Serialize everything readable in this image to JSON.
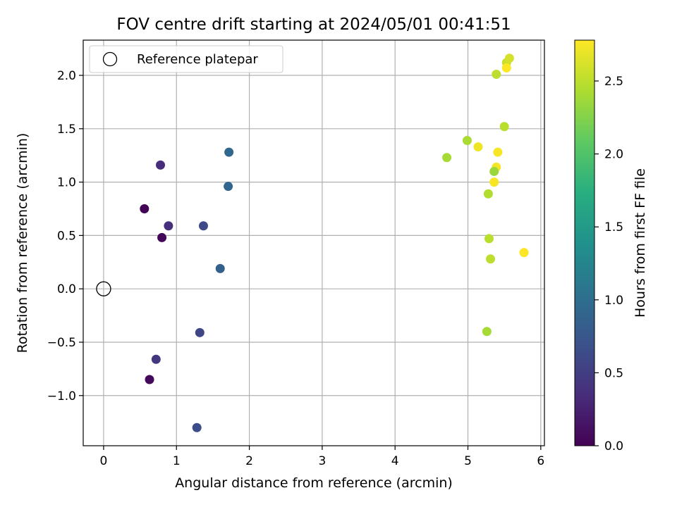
{
  "chart_data": {
    "type": "scatter",
    "title": "FOV centre drift starting at 2024/05/01 00:41:51",
    "xlabel": "Angular distance from reference (arcmin)",
    "ylabel": "Rotation from reference (arcmin)",
    "xlim": [
      -0.28,
      6.05
    ],
    "ylim": [
      -1.47,
      2.33
    ],
    "xticks": [
      {
        "value": 0,
        "label": "0"
      },
      {
        "value": 1,
        "label": "1"
      },
      {
        "value": 2,
        "label": "2"
      },
      {
        "value": 3,
        "label": "3"
      },
      {
        "value": 4,
        "label": "4"
      },
      {
        "value": 5,
        "label": "5"
      },
      {
        "value": 6,
        "label": "6"
      }
    ],
    "yticks": [
      {
        "value": -1.0,
        "label": "−1.0"
      },
      {
        "value": -0.5,
        "label": "−0.5"
      },
      {
        "value": 0.0,
        "label": "0.0"
      },
      {
        "value": 0.5,
        "label": "0.5"
      },
      {
        "value": 1.0,
        "label": "1.0"
      },
      {
        "value": 1.5,
        "label": "1.5"
      },
      {
        "value": 2.0,
        "label": "2.0"
      }
    ],
    "grid": true,
    "legend": {
      "placement": "top-left",
      "entries": [
        "Reference platepar"
      ]
    },
    "reference_point": {
      "x": 0.0,
      "y": 0.0,
      "label": "Reference platepar"
    },
    "colorbar": {
      "label": "Hours from first FF file",
      "colormap": "viridis",
      "range": [
        0.0,
        2.78
      ],
      "ticks": [
        {
          "value": 0.0,
          "label": "0.0"
        },
        {
          "value": 0.5,
          "label": "0.5"
        },
        {
          "value": 1.0,
          "label": "1.0"
        },
        {
          "value": 1.5,
          "label": "1.5"
        },
        {
          "value": 2.0,
          "label": "2.0"
        },
        {
          "value": 2.5,
          "label": "2.5"
        }
      ]
    },
    "points": [
      {
        "x": 0.56,
        "y": 0.75,
        "hours": 0.02
      },
      {
        "x": 0.8,
        "y": 0.48,
        "hours": 0.04
      },
      {
        "x": 0.63,
        "y": -0.85,
        "hours": 0.06
      },
      {
        "x": 0.78,
        "y": 1.16,
        "hours": 0.35
      },
      {
        "x": 0.89,
        "y": 0.59,
        "hours": 0.38
      },
      {
        "x": 0.72,
        "y": -0.66,
        "hours": 0.45
      },
      {
        "x": 1.32,
        "y": -0.41,
        "hours": 0.58
      },
      {
        "x": 1.37,
        "y": 0.59,
        "hours": 0.62
      },
      {
        "x": 1.28,
        "y": -1.3,
        "hours": 0.65
      },
      {
        "x": 1.6,
        "y": 0.19,
        "hours": 0.85
      },
      {
        "x": 1.71,
        "y": 0.96,
        "hours": 0.9
      },
      {
        "x": 1.72,
        "y": 1.28,
        "hours": 0.93
      },
      {
        "x": 4.71,
        "y": 1.23,
        "hours": 2.4
      },
      {
        "x": 4.99,
        "y": 1.39,
        "hours": 2.42
      },
      {
        "x": 5.14,
        "y": 1.33,
        "hours": 2.72
      },
      {
        "x": 5.41,
        "y": 1.28,
        "hours": 2.75
      },
      {
        "x": 5.39,
        "y": 1.14,
        "hours": 2.74
      },
      {
        "x": 5.36,
        "y": 1.1,
        "hours": 2.35
      },
      {
        "x": 5.36,
        "y": 1.0,
        "hours": 2.76
      },
      {
        "x": 5.28,
        "y": 0.89,
        "hours": 2.45
      },
      {
        "x": 5.29,
        "y": 0.47,
        "hours": 2.48
      },
      {
        "x": 5.31,
        "y": 0.28,
        "hours": 2.5
      },
      {
        "x": 5.26,
        "y": -0.4,
        "hours": 2.4
      },
      {
        "x": 5.5,
        "y": 1.52,
        "hours": 2.48
      },
      {
        "x": 5.39,
        "y": 2.01,
        "hours": 2.5
      },
      {
        "x": 5.53,
        "y": 2.12,
        "hours": 2.55
      },
      {
        "x": 5.57,
        "y": 2.16,
        "hours": 2.6
      },
      {
        "x": 5.53,
        "y": 2.07,
        "hours": 2.78
      },
      {
        "x": 5.77,
        "y": 0.34,
        "hours": 2.78
      }
    ]
  }
}
